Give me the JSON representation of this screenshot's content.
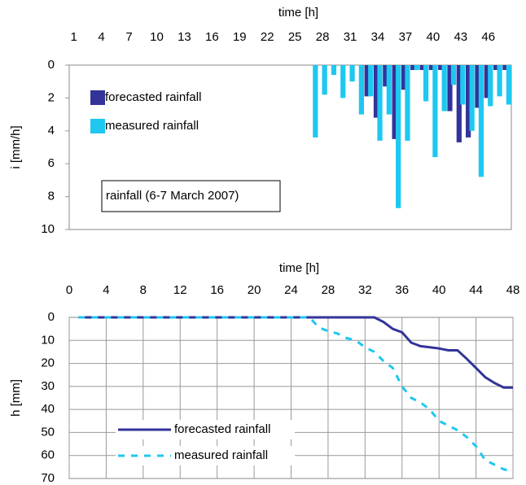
{
  "chart_data": [
    {
      "type": "bar",
      "xlabel": "time [h]",
      "ylabel": "i [mm/h]",
      "annotation": "rainfall (6-7 March 2007)",
      "categories": [
        1,
        null,
        null,
        4,
        null,
        null,
        7,
        null,
        null,
        10,
        null,
        null,
        13,
        null,
        null,
        16,
        null,
        null,
        19,
        null,
        null,
        22,
        null,
        null,
        25,
        null,
        null,
        28,
        null,
        null,
        31,
        null,
        null,
        34,
        null,
        null,
        37,
        null,
        null,
        40,
        null,
        null,
        43,
        null,
        null,
        46,
        null,
        null
      ],
      "series": [
        {
          "name": "forecasted rainfall",
          "color": "#333399",
          "values": [
            0,
            0,
            0,
            0,
            0,
            0,
            0,
            0,
            0,
            0,
            0,
            0,
            0,
            0,
            0,
            0,
            0,
            0,
            0,
            0,
            0,
            0,
            0,
            0,
            0,
            0,
            0,
            0,
            0,
            0,
            0,
            0,
            1.9,
            3.2,
            1.3,
            4.5,
            1.5,
            0.3,
            0.3,
            0.3,
            0.3,
            2.8,
            4.7,
            4.4,
            2.6,
            2.0,
            0.3,
            0.3
          ]
        },
        {
          "name": "measured rainfall",
          "color": "#1ec8f0",
          "values": [
            0,
            0,
            0,
            0,
            0,
            0,
            0,
            0,
            0,
            0,
            0,
            0,
            0,
            0,
            0,
            0,
            0,
            0,
            0,
            0,
            0,
            0,
            0,
            0,
            0,
            0,
            4.4,
            1.8,
            0.6,
            2.0,
            1.0,
            3.0,
            1.9,
            4.6,
            3.0,
            8.7,
            4.6,
            0.3,
            2.2,
            5.6,
            2.8,
            1.2,
            2.4,
            4.0,
            6.8,
            2.5,
            1.9,
            2.4
          ]
        }
      ],
      "ylim": [
        0,
        10
      ],
      "yticks": [
        0,
        2,
        4,
        6,
        8,
        10
      ],
      "y_inverted": true,
      "x_axis_position": "top",
      "grid": false,
      "legend": "upper left"
    },
    {
      "type": "line",
      "xlabel": "time [h]",
      "ylabel": "h [mm]",
      "x": [
        1,
        2,
        3,
        4,
        5,
        6,
        7,
        8,
        9,
        10,
        11,
        12,
        13,
        14,
        15,
        16,
        17,
        18,
        19,
        20,
        21,
        22,
        23,
        24,
        25,
        26,
        27,
        28,
        29,
        30,
        31,
        32,
        33,
        34,
        35,
        36,
        37,
        38,
        39,
        40,
        41,
        42,
        43,
        44,
        45,
        46,
        47,
        48
      ],
      "series": [
        {
          "name": "forecasted rainfall",
          "color": "#333399",
          "dash": false,
          "values": [
            0,
            0,
            0,
            0,
            0,
            0,
            0,
            0,
            0,
            0,
            0,
            0,
            0,
            0,
            0,
            0,
            0,
            0,
            0,
            0,
            0,
            0,
            0,
            0,
            0,
            0,
            0,
            0,
            0,
            0,
            0,
            0,
            0,
            2,
            5,
            6.5,
            11,
            12.5,
            13,
            13.5,
            14.3,
            14.3,
            18,
            22,
            26,
            28.5,
            30.5,
            30.5
          ]
        },
        {
          "name": "measured rainfall",
          "color": "#1ec8f0",
          "dash": true,
          "values": [
            0,
            0,
            0,
            0,
            0,
            0,
            0,
            0,
            0,
            0,
            0,
            0,
            0,
            0,
            0,
            0,
            0,
            0,
            0,
            0,
            0,
            0,
            0,
            0,
            0,
            0,
            4.4,
            6,
            7,
            9,
            10,
            13,
            15,
            19,
            22,
            30,
            35,
            37,
            40,
            45,
            47,
            49,
            52,
            56,
            62,
            64,
            66,
            67
          ]
        }
      ],
      "xlim": [
        0,
        48
      ],
      "xticks": [
        0,
        4,
        8,
        12,
        16,
        20,
        24,
        28,
        32,
        36,
        40,
        44,
        48
      ],
      "ylim": [
        0,
        70
      ],
      "yticks": [
        0,
        10,
        20,
        30,
        40,
        50,
        60,
        70
      ],
      "y_inverted": true,
      "x_axis_position": "top",
      "grid": true,
      "legend": "lower left"
    }
  ]
}
